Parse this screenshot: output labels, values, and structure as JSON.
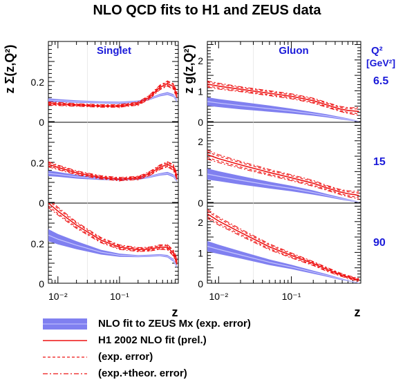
{
  "title": "NLO QCD fits to H1 and ZEUS data",
  "colors": {
    "zeus_band": "#8080f0",
    "zeus_center": "#c8c8ff",
    "h1": "#ee1111",
    "label_blue": "#1a1ad9"
  },
  "chart_data": {
    "type": "line",
    "panel_titles": [
      "Singlet",
      "Gluon"
    ],
    "ylabels": [
      "z Σ(z,Q²)",
      "z g(z,Q²)"
    ],
    "xlabel": "z",
    "x_scale": "log",
    "x_tick_labels": [
      "10⁻²",
      "10⁻¹"
    ],
    "q2_header": {
      "symbol": "Q²",
      "unit": "[GeV²]"
    },
    "q2_values": [
      "6.5",
      "15",
      "90"
    ],
    "y_tick_labels": {
      "singlet": [
        "0",
        "0.2"
      ],
      "gluon": [
        "0",
        "1",
        "2"
      ]
    },
    "xlim": [
      0.007,
      0.9
    ],
    "ylim_singlet": [
      0,
      0.4
    ],
    "ylim_gluon": [
      0,
      2.6
    ],
    "x": [
      0.007,
      0.01,
      0.02,
      0.05,
      0.1,
      0.2,
      0.3,
      0.45,
      0.6,
      0.75,
      0.85
    ],
    "series": [
      {
        "name": "NLO fit to ZEUS Mx (exp. error)",
        "panel": "Singlet",
        "q2": "6.5",
        "values": [
          0.108,
          0.105,
          0.1,
          0.096,
          0.094,
          0.1,
          0.112,
          0.132,
          0.14,
          0.13,
          0.105
        ],
        "error": [
          0.008,
          0.007,
          0.006,
          0.005,
          0.005,
          0.005,
          0.005,
          0.006,
          0.007,
          0.007,
          0.008
        ]
      },
      {
        "name": "NLO fit to ZEUS Mx (exp. error)",
        "panel": "Singlet",
        "q2": "15",
        "values": [
          0.145,
          0.14,
          0.128,
          0.118,
          0.115,
          0.118,
          0.127,
          0.14,
          0.145,
          0.133,
          0.11
        ],
        "error": [
          0.014,
          0.012,
          0.009,
          0.006,
          0.005,
          0.005,
          0.005,
          0.006,
          0.007,
          0.007,
          0.008
        ]
      },
      {
        "name": "NLO fit to ZEUS Mx (exp. error)",
        "panel": "Singlet",
        "q2": "90",
        "values": [
          0.24,
          0.22,
          0.19,
          0.155,
          0.14,
          0.135,
          0.137,
          0.14,
          0.135,
          0.115,
          0.085
        ],
        "error": [
          0.03,
          0.026,
          0.02,
          0.012,
          0.008,
          0.005,
          0.005,
          0.005,
          0.006,
          0.007,
          0.008
        ]
      },
      {
        "name": "H1 2002 NLO fit (prel.)",
        "panel": "Singlet",
        "q2": "6.5",
        "values": [
          0.09,
          0.088,
          0.083,
          0.078,
          0.078,
          0.09,
          0.12,
          0.17,
          0.19,
          0.175,
          0.135
        ],
        "error": [
          0.005,
          0.005,
          0.004,
          0.004,
          0.004,
          0.005,
          0.006,
          0.007,
          0.008,
          0.009,
          0.01
        ]
      },
      {
        "name": "H1 2002 NLO fit (prel.)",
        "panel": "Singlet",
        "q2": "15",
        "values": [
          0.19,
          0.175,
          0.148,
          0.125,
          0.116,
          0.122,
          0.142,
          0.175,
          0.19,
          0.175,
          0.13
        ],
        "error": [
          0.008,
          0.007,
          0.006,
          0.005,
          0.005,
          0.005,
          0.006,
          0.007,
          0.008,
          0.009,
          0.01
        ]
      },
      {
        "name": "H1 2002 NLO fit (prel.)",
        "panel": "Singlet",
        "q2": "90",
        "values": [
          0.4,
          0.36,
          0.29,
          0.215,
          0.18,
          0.168,
          0.17,
          0.18,
          0.18,
          0.15,
          0.11
        ],
        "error": [
          0.014,
          0.012,
          0.01,
          0.008,
          0.007,
          0.006,
          0.006,
          0.007,
          0.008,
          0.009,
          0.01
        ]
      },
      {
        "name": "NLO fit to ZEUS Mx (exp. error)",
        "panel": "Gluon",
        "q2": "6.5",
        "values": [
          0.65,
          0.6,
          0.52,
          0.42,
          0.34,
          0.25,
          0.19,
          0.12,
          0.07,
          0.03,
          0.01
        ],
        "error": [
          0.14,
          0.13,
          0.12,
          0.1,
          0.08,
          0.06,
          0.05,
          0.04,
          0.03,
          0.02,
          0.01
        ]
      },
      {
        "name": "NLO fit to ZEUS Mx (exp. error)",
        "panel": "Gluon",
        "q2": "15",
        "values": [
          0.92,
          0.85,
          0.72,
          0.56,
          0.45,
          0.32,
          0.23,
          0.14,
          0.08,
          0.035,
          0.01
        ],
        "error": [
          0.18,
          0.16,
          0.14,
          0.11,
          0.09,
          0.07,
          0.05,
          0.04,
          0.03,
          0.02,
          0.01
        ]
      },
      {
        "name": "NLO fit to ZEUS Mx (exp. error)",
        "panel": "Gluon",
        "q2": "90",
        "values": [
          1.2,
          1.1,
          0.92,
          0.68,
          0.53,
          0.36,
          0.26,
          0.15,
          0.08,
          0.035,
          0.01
        ],
        "error": [
          0.17,
          0.15,
          0.12,
          0.09,
          0.07,
          0.05,
          0.04,
          0.03,
          0.02,
          0.015,
          0.01
        ]
      },
      {
        "name": "H1 2002 NLO fit (prel.)",
        "panel": "Gluon",
        "q2": "6.5",
        "values": [
          1.22,
          1.15,
          1.05,
          0.92,
          0.82,
          0.68,
          0.55,
          0.42,
          0.36,
          0.34,
          0.33
        ],
        "error": [
          0.06,
          0.06,
          0.05,
          0.05,
          0.05,
          0.05,
          0.05,
          0.05,
          0.06,
          0.07,
          0.08
        ]
      },
      {
        "name": "H1 2002 NLO fit (prel.)",
        "panel": "Gluon",
        "q2": "15",
        "values": [
          1.55,
          1.42,
          1.22,
          0.97,
          0.8,
          0.62,
          0.48,
          0.35,
          0.28,
          0.25,
          0.22
        ],
        "error": [
          0.09,
          0.08,
          0.07,
          0.06,
          0.06,
          0.06,
          0.05,
          0.05,
          0.06,
          0.07,
          0.08
        ]
      },
      {
        "name": "H1 2002 NLO fit (prel.)",
        "panel": "Gluon",
        "q2": "90",
        "values": [
          2.25,
          2.02,
          1.65,
          1.18,
          0.9,
          0.64,
          0.46,
          0.3,
          0.2,
          0.14,
          0.1
        ],
        "error": [
          0.09,
          0.08,
          0.07,
          0.06,
          0.05,
          0.04,
          0.04,
          0.03,
          0.03,
          0.03,
          0.03
        ]
      }
    ],
    "theor_extra_error": 0.6,
    "legend": [
      {
        "symbol": "band",
        "label": "NLO fit to ZEUS Mx (exp. error)"
      },
      {
        "symbol": "solid",
        "label": "H1 2002 NLO fit (prel.)"
      },
      {
        "symbol": "dashed",
        "label": "(exp. error)"
      },
      {
        "symbol": "dashdot",
        "label": "(exp.+theor. error)"
      }
    ]
  }
}
